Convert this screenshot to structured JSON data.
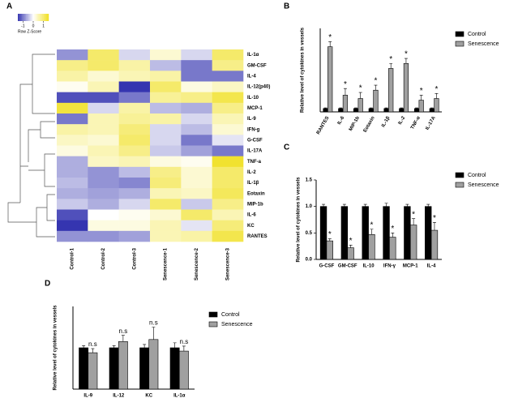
{
  "chart_data": [
    {
      "type": "heatmap",
      "panel": "A",
      "rows": [
        "IL-1α",
        "GM-CSF",
        "IL-4",
        "IL-12(p40)",
        "IL-10",
        "MCP-1",
        "IL-9",
        "IFN-g",
        "G-CSF",
        "IL-17A",
        "TNF-a",
        "IL-2",
        "IL-1β",
        "Eotaxin",
        "MIP-1b",
        "IL-6",
        "KC",
        "RANTES"
      ],
      "columns": [
        "Control-1",
        "Control-2",
        "Control-3",
        "Senescence-1",
        "Senescence-2",
        "Senescence-3"
      ],
      "values": [
        [
          -0.8,
          1.0,
          -0.3,
          0.3,
          -0.3,
          1.0
        ],
        [
          0.8,
          1.0,
          0.6,
          -0.5,
          -1.0,
          0.8
        ],
        [
          0.6,
          0.3,
          0.5,
          0.6,
          -1.0,
          -1.0
        ],
        [
          0.1,
          0.5,
          -1.5,
          1.0,
          0.2,
          0.4
        ],
        [
          -1.3,
          -1.3,
          -1.0,
          0.7,
          0.8,
          1.2
        ],
        [
          1.3,
          -0.3,
          0.6,
          -0.5,
          -0.6,
          0.8
        ],
        [
          -1.0,
          0.5,
          0.7,
          0.6,
          -0.3,
          0.5
        ],
        [
          0.6,
          0.5,
          0.9,
          -0.3,
          -0.5,
          0.3
        ],
        [
          0.4,
          0.3,
          1.0,
          -0.3,
          -1.0,
          -0.2
        ],
        [
          0.2,
          0.5,
          0.8,
          -0.4,
          -0.7,
          -1.0
        ],
        [
          -0.6,
          0.4,
          0.5,
          0.2,
          0.1,
          1.4
        ],
        [
          -0.6,
          -0.8,
          -0.5,
          0.8,
          0.3,
          1.0
        ],
        [
          -0.5,
          -0.8,
          -0.9,
          0.9,
          0.3,
          1.0
        ],
        [
          -0.6,
          -0.7,
          -0.6,
          0.5,
          0.4,
          1.1
        ],
        [
          -0.4,
          -0.6,
          -0.3,
          1.0,
          -0.4,
          0.8
        ],
        [
          -1.3,
          0.0,
          0.1,
          0.3,
          1.0,
          0.5
        ],
        [
          -1.5,
          0.2,
          0.2,
          0.5,
          -0.2,
          0.9
        ],
        [
          -0.8,
          -0.8,
          -0.7,
          0.5,
          0.6,
          1.2
        ]
      ],
      "colorscale": [
        "#3535b0",
        "#ffffff",
        "#f0e020"
      ],
      "clim": [
        -1.5,
        1.5
      ],
      "colorbar_ticks": [
        -1,
        0,
        1
      ],
      "colorbar_label": "Row Z-Score"
    },
    {
      "type": "bar",
      "panel": "B",
      "ylabel": "Relative level of cytokines in vessels",
      "categories": [
        "RANTES",
        "IL-6",
        "MIP-1b",
        "Eotaxin",
        "IL-1β",
        "IL-2",
        "TNF-α",
        "IL-17A"
      ],
      "series": [
        {
          "name": "Control",
          "color": "#000000",
          "values": [
            1,
            1,
            1,
            1,
            1,
            1,
            1,
            1
          ],
          "errors": [
            0.2,
            0.2,
            0.2,
            0.2,
            0.2,
            0.2,
            0.2,
            0.2
          ]
        },
        {
          "name": "Senescence",
          "color": "#a0a0a0",
          "values": [
            19.5,
            5,
            4,
            6.5,
            13,
            14.5,
            3.5,
            4
          ],
          "errors": [
            1.5,
            2,
            1.8,
            1.5,
            1.5,
            1.5,
            1.5,
            1.5
          ],
          "significance": [
            "*",
            "*",
            "*",
            "*",
            "*",
            "*",
            "*",
            "*"
          ]
        }
      ],
      "ylim": [
        0,
        25
      ]
    },
    {
      "type": "bar",
      "panel": "C",
      "ylabel": "Relative level of cytokines in vessels",
      "categories": [
        "G-CSF",
        "GM-CSF",
        "IL-10",
        "IFN-γ",
        "MCP-1",
        "IL-4"
      ],
      "series": [
        {
          "name": "Control",
          "color": "#000000",
          "values": [
            1,
            1,
            1,
            1,
            1,
            1
          ],
          "errors": [
            0.04,
            0.04,
            0.04,
            0.06,
            0.04,
            0.04
          ]
        },
        {
          "name": "Senescence",
          "color": "#a0a0a0",
          "values": [
            0.35,
            0.22,
            0.47,
            0.42,
            0.65,
            0.55
          ],
          "errors": [
            0.04,
            0.05,
            0.1,
            0.08,
            0.12,
            0.15
          ],
          "significance": [
            "*",
            "*",
            "*",
            "*",
            "*",
            "*"
          ]
        }
      ],
      "ylim": [
        0,
        1.5
      ],
      "yticks": [
        {
          "value": 0,
          "label": "0.0"
        },
        {
          "value": 0.5,
          "label": "0.5"
        },
        {
          "value": 1,
          "label": "1.0"
        },
        {
          "value": 1.5,
          "label": "1.5"
        }
      ]
    },
    {
      "type": "bar",
      "panel": "D",
      "ylabel": "Relative level of cytokines in vessels",
      "categories": [
        "IL-9",
        "IL-12",
        "KC",
        "IL-1α"
      ],
      "series": [
        {
          "name": "Control",
          "color": "#000000",
          "values": [
            1,
            1,
            1,
            1
          ],
          "errors": [
            0.05,
            0.05,
            0.08,
            0.12
          ]
        },
        {
          "name": "Senescence",
          "color": "#a0a0a0",
          "values": [
            0.88,
            1.15,
            1.2,
            0.92
          ],
          "errors": [
            0.1,
            0.15,
            0.3,
            0.12
          ],
          "significance": [
            "n.s",
            "n.s",
            "n.s",
            "n.s"
          ]
        }
      ],
      "ylim": [
        0,
        2
      ]
    }
  ]
}
